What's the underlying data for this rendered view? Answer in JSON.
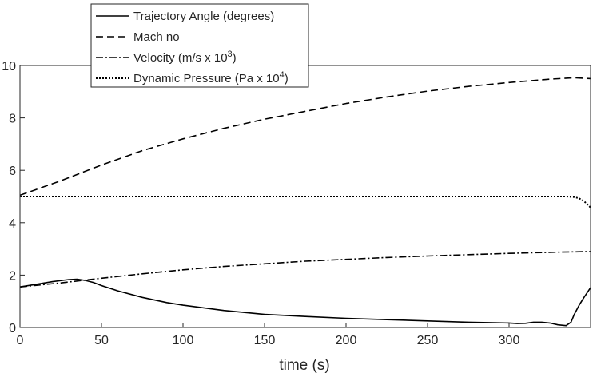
{
  "chart_data": {
    "type": "line",
    "xlabel": "time (s)",
    "ylabel": "",
    "xlim": [
      0,
      350
    ],
    "ylim": [
      0,
      10
    ],
    "xticks": [
      "0",
      "50",
      "100",
      "150",
      "200",
      "250",
      "300"
    ],
    "yticks": [
      "0",
      "2",
      "4",
      "6",
      "8",
      "10"
    ],
    "grid": false,
    "legend_position": "top-left",
    "series": [
      {
        "name": "Trajectory Angle (degrees)",
        "style": "solid",
        "x": [
          0,
          10,
          20,
          30,
          35,
          40,
          45,
          50,
          60,
          75,
          90,
          100,
          125,
          150,
          175,
          200,
          225,
          250,
          275,
          300,
          305,
          310,
          315,
          320,
          325,
          330,
          335,
          338,
          340,
          343,
          346,
          350
        ],
        "y": [
          1.55,
          1.65,
          1.75,
          1.83,
          1.84,
          1.8,
          1.72,
          1.6,
          1.4,
          1.15,
          0.95,
          0.85,
          0.65,
          0.5,
          0.42,
          0.35,
          0.3,
          0.25,
          0.2,
          0.17,
          0.15,
          0.16,
          0.2,
          0.2,
          0.17,
          0.1,
          0.07,
          0.2,
          0.5,
          0.85,
          1.15,
          1.52
        ]
      },
      {
        "name": "Mach no",
        "style": "dashed",
        "x": [
          0,
          25,
          50,
          75,
          100,
          125,
          150,
          175,
          200,
          225,
          250,
          275,
          300,
          325,
          340,
          350
        ],
        "y": [
          5.05,
          5.6,
          6.2,
          6.75,
          7.2,
          7.6,
          7.95,
          8.25,
          8.55,
          8.8,
          9.02,
          9.2,
          9.35,
          9.48,
          9.53,
          9.5
        ]
      },
      {
        "name": "Velocity (m/s x 10",
        "name_sup": "3",
        "name_end": ")",
        "style": "dashdot",
        "x": [
          0,
          25,
          50,
          75,
          100,
          125,
          150,
          175,
          200,
          225,
          250,
          275,
          300,
          325,
          350
        ],
        "y": [
          1.55,
          1.7,
          1.88,
          2.05,
          2.2,
          2.33,
          2.43,
          2.53,
          2.6,
          2.67,
          2.73,
          2.78,
          2.83,
          2.87,
          2.9
        ]
      },
      {
        "name": "Dynamic Pressure (Pa x 10",
        "name_sup": "4",
        "name_end": ")",
        "style": "dotted",
        "x": [
          0,
          100,
          200,
          300,
          335,
          340,
          343,
          346,
          348,
          350
        ],
        "y": [
          5.0,
          5.0,
          5.0,
          5.0,
          5.0,
          4.98,
          4.93,
          4.82,
          4.7,
          4.58
        ]
      }
    ]
  }
}
